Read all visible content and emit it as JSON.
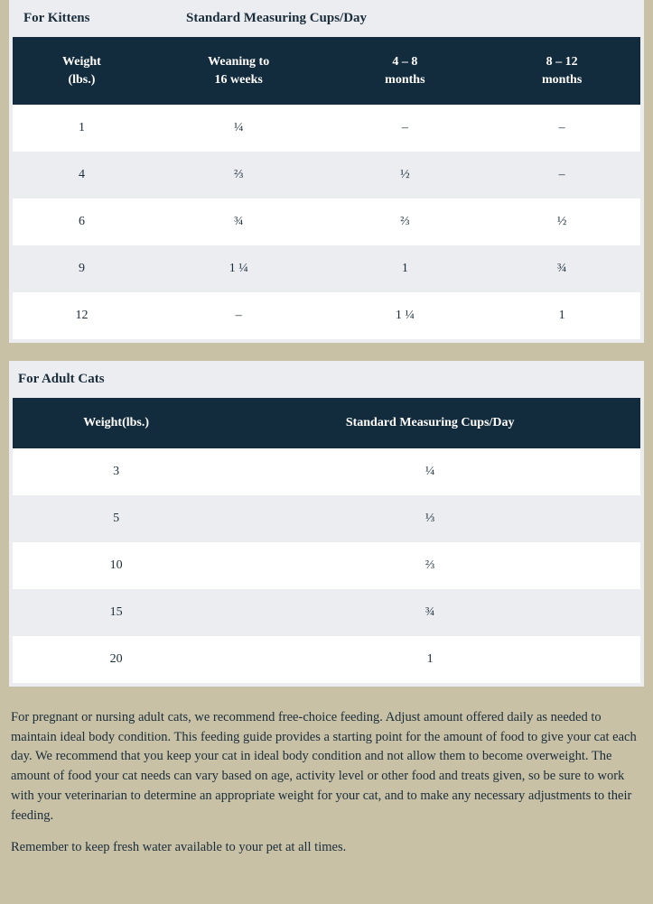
{
  "kittens": {
    "title_left": "For Kittens",
    "title_right": "Standard Measuring Cups/Day",
    "headers": {
      "c0": "Weight\n(lbs.)",
      "c1": "Weaning to\n16 weeks",
      "c2": "4 – 8\nmonths",
      "c3": "8 – 12\nmonths"
    },
    "rows": [
      {
        "c0": "1",
        "c1": "¼",
        "c2": "–",
        "c3": "–"
      },
      {
        "c0": "4",
        "c1": "⅔",
        "c2": "½",
        "c3": "–"
      },
      {
        "c0": "6",
        "c1": "¾",
        "c2": "⅔",
        "c3": "½"
      },
      {
        "c0": "9",
        "c1": "1 ¼",
        "c2": "1",
        "c3": "¾"
      },
      {
        "c0": "12",
        "c1": "–",
        "c2": "1 ¼",
        "c3": "1"
      }
    ]
  },
  "adults": {
    "title": "For Adult Cats",
    "headers": {
      "c0": "Weight(lbs.)",
      "c1": "Standard Measuring Cups/Day"
    },
    "rows": [
      {
        "c0": "3",
        "c1": "¼"
      },
      {
        "c0": "5",
        "c1": "⅓"
      },
      {
        "c0": "10",
        "c1": "⅔"
      },
      {
        "c0": "15",
        "c1": "¾"
      },
      {
        "c0": "20",
        "c1": "1"
      }
    ]
  },
  "note1": "For pregnant or nursing adult cats, we recommend free-choice feeding. Adjust amount offered daily as needed to maintain ideal body condition. This feeding guide provides a starting point for the amount of food to give your cat each day. We recommend that you keep your cat in ideal body condition and not allow them to become overweight. The amount of food your cat needs can vary based on age, activity level or other food and treats given, so be sure to work with your veterinarian to determine an appropriate weight for your cat, and to make any necessary adjustments to their feeding.",
  "note2": "Remember to keep fresh water available to your pet at all times."
}
